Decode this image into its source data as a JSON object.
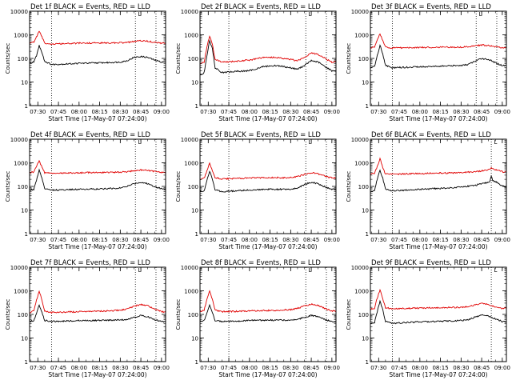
{
  "common": {
    "xlabel": "Start Time (17-May-07 07:24:00)",
    "ylabel": "Counts/sec",
    "x_ticks": [
      "07:30",
      "07:45",
      "08:00",
      "08:15",
      "08:30",
      "08:45",
      "09:00"
    ],
    "y_ticks": [
      "1",
      "10",
      "100",
      "1000",
      "10000"
    ],
    "marker_text": "L"
  },
  "colors": {
    "events": "#000000",
    "lld": "#e00000",
    "axis": "#000000"
  },
  "chart_data": [
    {
      "type": "line",
      "title": "Det 1f BLACK = Events, RED = LLD",
      "y_scale": "log",
      "ylim": [
        1,
        10000
      ],
      "xlim": [
        "07:24",
        "09:03"
      ],
      "dotted_lines": [
        "07:40",
        "08:41",
        "08:56"
      ],
      "series": [
        {
          "name": "Events",
          "x": [
            "07:24",
            "07:27",
            "07:29",
            "07:31",
            "07:33",
            "07:35",
            "07:40",
            "07:50",
            "08:00",
            "08:10",
            "08:20",
            "08:30",
            "08:35",
            "08:40",
            "08:45",
            "08:50",
            "08:55",
            "09:00"
          ],
          "values": [
            65,
            70,
            130,
            350,
            180,
            75,
            55,
            58,
            62,
            64,
            66,
            70,
            80,
            110,
            120,
            110,
            85,
            70
          ]
        },
        {
          "name": "LLD",
          "x": [
            "07:24",
            "07:27",
            "07:29",
            "07:31",
            "07:33",
            "07:35",
            "07:40",
            "07:50",
            "08:00",
            "08:10",
            "08:20",
            "08:30",
            "08:35",
            "08:40",
            "08:45",
            "08:50",
            "08:55",
            "09:00"
          ],
          "values": [
            460,
            480,
            800,
            1400,
            800,
            450,
            400,
            420,
            440,
            450,
            450,
            460,
            470,
            520,
            560,
            540,
            480,
            440
          ]
        }
      ]
    },
    {
      "type": "line",
      "title": "Det 2f BLACK = Events, RED = LLD",
      "y_scale": "log",
      "ylim": [
        1,
        10000
      ],
      "xlim": [
        "07:24",
        "09:03"
      ],
      "dotted_lines": [
        "07:45",
        "08:41",
        "08:56"
      ],
      "series": [
        {
          "name": "Events",
          "x": [
            "07:24",
            "07:27",
            "07:29",
            "07:31",
            "07:33",
            "07:35",
            "07:40",
            "07:50",
            "08:00",
            "08:10",
            "08:20",
            "08:30",
            "08:35",
            "08:40",
            "08:45",
            "08:50",
            "08:55",
            "09:00"
          ],
          "values": [
            20,
            25,
            120,
            600,
            250,
            40,
            25,
            28,
            30,
            45,
            50,
            40,
            35,
            50,
            80,
            70,
            45,
            30
          ]
        },
        {
          "name": "LLD",
          "x": [
            "07:24",
            "07:27",
            "07:29",
            "07:31",
            "07:33",
            "07:35",
            "07:40",
            "07:50",
            "08:00",
            "08:10",
            "08:20",
            "08:30",
            "08:35",
            "08:40",
            "08:45",
            "08:50",
            "08:55",
            "09:00"
          ],
          "values": [
            60,
            70,
            300,
            900,
            400,
            90,
            70,
            75,
            85,
            110,
            110,
            90,
            80,
            110,
            170,
            150,
            100,
            70
          ]
        }
      ]
    },
    {
      "type": "line",
      "title": "Det 3f BLACK = Events, RED = LLD",
      "y_scale": "log",
      "ylim": [
        1,
        10000
      ],
      "xlim": [
        "07:24",
        "09:03"
      ],
      "dotted_lines": [
        "07:40",
        "08:41",
        "08:56"
      ],
      "series": [
        {
          "name": "Events",
          "x": [
            "07:24",
            "07:27",
            "07:29",
            "07:31",
            "07:33",
            "07:35",
            "07:40",
            "07:50",
            "08:00",
            "08:10",
            "08:20",
            "08:30",
            "08:35",
            "08:40",
            "08:45",
            "08:50",
            "08:55",
            "09:00"
          ],
          "values": [
            40,
            45,
            130,
            350,
            160,
            50,
            40,
            42,
            44,
            46,
            48,
            50,
            55,
            75,
            100,
            90,
            65,
            50
          ]
        },
        {
          "name": "LLD",
          "x": [
            "07:24",
            "07:27",
            "07:29",
            "07:31",
            "07:33",
            "07:35",
            "07:40",
            "07:50",
            "08:00",
            "08:10",
            "08:20",
            "08:30",
            "08:35",
            "08:40",
            "08:45",
            "08:50",
            "08:55",
            "09:00"
          ],
          "values": [
            280,
            300,
            600,
            1100,
            550,
            300,
            280,
            280,
            290,
            295,
            300,
            300,
            310,
            340,
            370,
            350,
            310,
            290
          ]
        }
      ]
    },
    {
      "type": "line",
      "title": "Det 4f BLACK = Events, RED = LLD",
      "y_scale": "log",
      "ylim": [
        1,
        10000
      ],
      "xlim": [
        "07:24",
        "09:03"
      ],
      "dotted_lines": [
        "07:40",
        "08:41",
        "08:56"
      ],
      "series": [
        {
          "name": "Events",
          "x": [
            "07:24",
            "07:27",
            "07:29",
            "07:31",
            "07:33",
            "07:35",
            "07:40",
            "07:50",
            "08:00",
            "08:10",
            "08:20",
            "08:30",
            "08:35",
            "08:40",
            "08:45",
            "08:50",
            "08:55",
            "09:00"
          ],
          "values": [
            70,
            75,
            180,
            500,
            220,
            80,
            70,
            72,
            75,
            78,
            80,
            85,
            100,
            130,
            150,
            130,
            100,
            80
          ]
        },
        {
          "name": "LLD",
          "x": [
            "07:24",
            "07:27",
            "07:29",
            "07:31",
            "07:33",
            "07:35",
            "07:40",
            "07:50",
            "08:00",
            "08:10",
            "08:20",
            "08:30",
            "08:35",
            "08:40",
            "08:45",
            "08:50",
            "08:55",
            "09:00"
          ],
          "values": [
            380,
            400,
            700,
            1200,
            650,
            380,
            360,
            370,
            380,
            390,
            390,
            400,
            420,
            460,
            500,
            480,
            430,
            390
          ]
        }
      ]
    },
    {
      "type": "line",
      "title": "Det 5f BLACK = Events, RED = LLD",
      "y_scale": "log",
      "ylim": [
        1,
        10000
      ],
      "xlim": [
        "07:24",
        "09:03"
      ],
      "dotted_lines": [
        "07:45",
        "08:41",
        "08:56"
      ],
      "series": [
        {
          "name": "Events",
          "x": [
            "07:24",
            "07:27",
            "07:29",
            "07:31",
            "07:33",
            "07:35",
            "07:40",
            "07:50",
            "08:00",
            "08:10",
            "08:20",
            "08:30",
            "08:35",
            "08:40",
            "08:45",
            "08:50",
            "08:55",
            "09:00"
          ],
          "values": [
            60,
            65,
            180,
            450,
            200,
            70,
            60,
            65,
            70,
            75,
            75,
            75,
            85,
            120,
            150,
            130,
            95,
            75
          ]
        },
        {
          "name": "LLD",
          "x": [
            "07:24",
            "07:27",
            "07:29",
            "07:31",
            "07:33",
            "07:35",
            "07:40",
            "07:50",
            "08:00",
            "08:10",
            "08:20",
            "08:30",
            "08:35",
            "08:40",
            "08:45",
            "08:50",
            "08:55",
            "09:00"
          ],
          "values": [
            200,
            220,
            450,
            1000,
            450,
            230,
            210,
            215,
            225,
            235,
            235,
            235,
            260,
            320,
            380,
            340,
            270,
            230
          ]
        }
      ]
    },
    {
      "type": "line",
      "title": "Det 6f BLACK = Events, RED = LLD",
      "y_scale": "log",
      "ylim": [
        1,
        10000
      ],
      "xlim": [
        "07:24",
        "09:03"
      ],
      "dotted_lines": [
        "07:40",
        "08:52"
      ],
      "series": [
        {
          "name": "Events",
          "x": [
            "07:24",
            "07:27",
            "07:29",
            "07:31",
            "07:33",
            "07:35",
            "07:40",
            "07:50",
            "08:00",
            "08:10",
            "08:20",
            "08:30",
            "08:40",
            "08:48",
            "08:51",
            "08:52",
            "08:53",
            "08:56",
            "09:00"
          ],
          "values": [
            60,
            65,
            200,
            500,
            220,
            75,
            65,
            70,
            75,
            80,
            85,
            95,
            110,
            140,
            160,
            280,
            180,
            150,
            100
          ]
        },
        {
          "name": "LLD",
          "x": [
            "07:24",
            "07:27",
            "07:29",
            "07:31",
            "07:33",
            "07:35",
            "07:40",
            "07:50",
            "08:00",
            "08:10",
            "08:20",
            "08:30",
            "08:40",
            "08:48",
            "08:51",
            "08:52",
            "08:53",
            "08:56",
            "09:00"
          ],
          "values": [
            330,
            350,
            700,
            1500,
            600,
            340,
            330,
            340,
            350,
            360,
            370,
            380,
            420,
            480,
            520,
            650,
            560,
            500,
            420
          ]
        }
      ]
    },
    {
      "type": "line",
      "title": "Det 7f BLACK = Events, RED = LLD",
      "y_scale": "log",
      "ylim": [
        1,
        10000
      ],
      "xlim": [
        "07:24",
        "09:03"
      ],
      "dotted_lines": [
        "07:40",
        "08:41",
        "08:56"
      ],
      "series": [
        {
          "name": "Events",
          "x": [
            "07:24",
            "07:27",
            "07:29",
            "07:31",
            "07:33",
            "07:35",
            "07:40",
            "07:50",
            "08:00",
            "08:10",
            "08:20",
            "08:30",
            "08:35",
            "08:40",
            "08:45",
            "08:50",
            "08:55",
            "09:00"
          ],
          "values": [
            50,
            55,
            110,
            250,
            120,
            55,
            50,
            52,
            55,
            55,
            56,
            58,
            62,
            75,
            90,
            80,
            60,
            50
          ]
        },
        {
          "name": "LLD",
          "x": [
            "07:24",
            "07:27",
            "07:29",
            "07:31",
            "07:33",
            "07:35",
            "07:40",
            "07:50",
            "08:00",
            "08:10",
            "08:20",
            "08:30",
            "08:35",
            "08:40",
            "08:45",
            "08:50",
            "08:55",
            "09:00"
          ],
          "values": [
            120,
            140,
            400,
            1000,
            400,
            140,
            120,
            125,
            130,
            135,
            140,
            150,
            170,
            220,
            260,
            230,
            170,
            130
          ]
        }
      ]
    },
    {
      "type": "line",
      "title": "Det 8f BLACK = Events, RED = LLD",
      "y_scale": "log",
      "ylim": [
        1,
        10000
      ],
      "xlim": [
        "07:24",
        "09:03"
      ],
      "dotted_lines": [
        "07:45",
        "08:41",
        "08:56"
      ],
      "series": [
        {
          "name": "Events",
          "x": [
            "07:24",
            "07:27",
            "07:29",
            "07:31",
            "07:33",
            "07:35",
            "07:40",
            "07:50",
            "08:00",
            "08:10",
            "08:20",
            "08:30",
            "08:35",
            "08:40",
            "08:45",
            "08:50",
            "08:55",
            "09:00"
          ],
          "values": [
            50,
            55,
            110,
            260,
            120,
            55,
            50,
            52,
            55,
            57,
            57,
            58,
            62,
            75,
            90,
            80,
            60,
            50
          ]
        },
        {
          "name": "LLD",
          "x": [
            "07:24",
            "07:27",
            "07:29",
            "07:31",
            "07:33",
            "07:35",
            "07:40",
            "07:50",
            "08:00",
            "08:10",
            "08:20",
            "08:30",
            "08:35",
            "08:40",
            "08:45",
            "08:50",
            "08:55",
            "09:00"
          ],
          "values": [
            130,
            150,
            420,
            1000,
            420,
            150,
            130,
            135,
            140,
            145,
            150,
            160,
            180,
            230,
            270,
            240,
            180,
            140
          ]
        }
      ]
    },
    {
      "type": "line",
      "title": "Det 9f BLACK = Events, RED = LLD",
      "y_scale": "log",
      "ylim": [
        1,
        10000
      ],
      "xlim": [
        "07:24",
        "09:03"
      ],
      "dotted_lines": [
        "07:40",
        "08:52"
      ],
      "series": [
        {
          "name": "Events",
          "x": [
            "07:24",
            "07:27",
            "07:29",
            "07:31",
            "07:33",
            "07:35",
            "07:40",
            "07:50",
            "08:00",
            "08:10",
            "08:20",
            "08:30",
            "08:35",
            "08:40",
            "08:45",
            "08:50",
            "08:55",
            "09:00"
          ],
          "values": [
            40,
            45,
            130,
            380,
            150,
            50,
            42,
            45,
            48,
            50,
            52,
            55,
            60,
            75,
            95,
            85,
            65,
            50
          ]
        },
        {
          "name": "LLD",
          "x": [
            "07:24",
            "07:27",
            "07:29",
            "07:31",
            "07:33",
            "07:35",
            "07:40",
            "07:50",
            "08:00",
            "08:10",
            "08:20",
            "08:30",
            "08:35",
            "08:40",
            "08:45",
            "08:50",
            "08:55",
            "09:00"
          ],
          "values": [
            170,
            185,
            500,
            1100,
            450,
            190,
            175,
            180,
            185,
            190,
            195,
            200,
            215,
            250,
            290,
            260,
            210,
            180
          ]
        }
      ]
    }
  ]
}
